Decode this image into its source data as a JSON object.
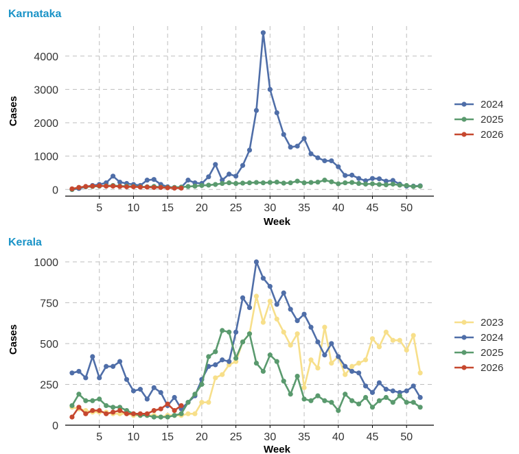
{
  "colors": {
    "title": "#1a93c7",
    "2023": "#f7df8a",
    "2024": "#4f6ea8",
    "2025": "#5a9a6e",
    "2026": "#c6482f"
  },
  "chart_data": [
    {
      "type": "line",
      "title": "Karnataka",
      "xlabel": "Week",
      "ylabel": "Cases",
      "xlim": [
        0,
        54
      ],
      "ylim": [
        -200,
        4900
      ],
      "xticks": [
        5,
        10,
        15,
        20,
        25,
        30,
        35,
        40,
        45,
        50
      ],
      "yticks": [
        0,
        1000,
        2000,
        3000,
        4000
      ],
      "grid": true,
      "legend": "right",
      "series": [
        {
          "name": "2024",
          "x": [
            1,
            2,
            3,
            4,
            5,
            6,
            7,
            8,
            9,
            10,
            11,
            12,
            13,
            14,
            15,
            16,
            17,
            18,
            19,
            20,
            21,
            22,
            23,
            24,
            25,
            26,
            27,
            28,
            29,
            30,
            31,
            32,
            33,
            34,
            35,
            36,
            37,
            38,
            39,
            40,
            41,
            42,
            43,
            44,
            45,
            46,
            47,
            48,
            49,
            50,
            51,
            52
          ],
          "values": [
            0,
            30,
            80,
            120,
            150,
            200,
            400,
            220,
            180,
            150,
            120,
            280,
            300,
            150,
            80,
            60,
            70,
            280,
            200,
            180,
            380,
            750,
            280,
            460,
            400,
            720,
            1180,
            2370,
            4700,
            3000,
            2300,
            1650,
            1270,
            1300,
            1530,
            1070,
            950,
            860,
            860,
            680,
            420,
            430,
            330,
            260,
            330,
            320,
            250,
            270,
            160,
            100,
            100,
            110
          ]
        },
        {
          "name": "2025",
          "x": [
            1,
            2,
            3,
            4,
            5,
            6,
            7,
            8,
            9,
            10,
            11,
            12,
            13,
            14,
            15,
            16,
            17,
            18,
            19,
            20,
            21,
            22,
            23,
            24,
            25,
            26,
            27,
            28,
            29,
            30,
            31,
            32,
            33,
            34,
            35,
            36,
            37,
            38,
            39,
            40,
            41,
            42,
            43,
            44,
            45,
            46,
            47,
            48,
            49,
            50,
            51,
            52
          ],
          "values": [
            0,
            60,
            80,
            90,
            100,
            110,
            120,
            100,
            100,
            90,
            80,
            80,
            90,
            70,
            60,
            60,
            70,
            90,
            100,
            120,
            130,
            150,
            180,
            200,
            180,
            190,
            200,
            210,
            200,
            210,
            220,
            190,
            200,
            250,
            200,
            210,
            220,
            280,
            230,
            170,
            200,
            210,
            180,
            160,
            170,
            150,
            140,
            160,
            130,
            120,
            90,
            100
          ]
        },
        {
          "name": "2026",
          "x": [
            1,
            2,
            3,
            4,
            5,
            6,
            7,
            8,
            9,
            10,
            11,
            12,
            13,
            14,
            15,
            16,
            17
          ],
          "values": [
            20,
            60,
            90,
            100,
            110,
            100,
            100,
            90,
            80,
            80,
            70,
            70,
            60,
            60,
            50,
            40,
            40
          ]
        }
      ]
    },
    {
      "type": "line",
      "title": "Kerala",
      "xlabel": "Week",
      "ylabel": "Cases",
      "xlim": [
        0,
        54
      ],
      "ylim": [
        0,
        1050
      ],
      "xticks": [
        5,
        10,
        15,
        20,
        25,
        30,
        35,
        40,
        45,
        50
      ],
      "yticks": [
        0,
        250,
        500,
        750,
        1000
      ],
      "grid": true,
      "legend": "right",
      "series": [
        {
          "name": "2023",
          "x": [
            1,
            2,
            3,
            4,
            5,
            6,
            7,
            8,
            9,
            10,
            11,
            12,
            13,
            14,
            15,
            16,
            17,
            18,
            19,
            20,
            21,
            22,
            23,
            24,
            25,
            26,
            27,
            28,
            29,
            30,
            31,
            32,
            33,
            34,
            35,
            36,
            37,
            38,
            39,
            40,
            41,
            42,
            43,
            44,
            45,
            46,
            47,
            48,
            49,
            50,
            51,
            52
          ],
          "values": [
            110,
            100,
            90,
            80,
            80,
            80,
            70,
            70,
            70,
            60,
            60,
            60,
            60,
            50,
            60,
            60,
            60,
            70,
            70,
            140,
            140,
            290,
            310,
            370,
            390,
            510,
            560,
            790,
            630,
            760,
            650,
            570,
            490,
            560,
            230,
            400,
            350,
            600,
            380,
            420,
            310,
            360,
            380,
            400,
            530,
            480,
            570,
            520,
            520,
            460,
            550,
            320
          ]
        },
        {
          "name": "2024",
          "x": [
            1,
            2,
            3,
            4,
            5,
            6,
            7,
            8,
            9,
            10,
            11,
            12,
            13,
            14,
            15,
            16,
            17,
            18,
            19,
            20,
            21,
            22,
            23,
            24,
            25,
            26,
            27,
            28,
            29,
            30,
            31,
            32,
            33,
            34,
            35,
            36,
            37,
            38,
            39,
            40,
            41,
            42,
            43,
            44,
            45,
            46,
            47,
            48,
            49,
            50,
            51,
            52
          ],
          "values": [
            320,
            330,
            290,
            420,
            290,
            360,
            360,
            390,
            280,
            210,
            220,
            160,
            230,
            200,
            120,
            170,
            100,
            140,
            180,
            280,
            360,
            370,
            400,
            390,
            570,
            780,
            720,
            1000,
            900,
            850,
            740,
            810,
            710,
            640,
            680,
            600,
            510,
            430,
            500,
            420,
            360,
            330,
            320,
            240,
            200,
            260,
            220,
            210,
            200,
            210,
            240,
            170
          ]
        },
        {
          "name": "2025",
          "x": [
            1,
            2,
            3,
            4,
            5,
            6,
            7,
            8,
            9,
            10,
            11,
            12,
            13,
            14,
            15,
            16,
            17,
            18,
            19,
            20,
            21,
            22,
            23,
            24,
            25,
            26,
            27,
            28,
            29,
            30,
            31,
            32,
            33,
            34,
            35,
            36,
            37,
            38,
            39,
            40,
            41,
            42,
            43,
            44,
            45,
            46,
            47,
            48,
            49,
            50,
            51,
            52
          ],
          "values": [
            120,
            190,
            150,
            150,
            160,
            120,
            110,
            110,
            90,
            70,
            60,
            60,
            50,
            50,
            50,
            60,
            70,
            140,
            190,
            250,
            420,
            450,
            580,
            570,
            410,
            510,
            560,
            380,
            330,
            430,
            390,
            270,
            190,
            300,
            160,
            150,
            180,
            150,
            140,
            90,
            190,
            150,
            130,
            170,
            110,
            150,
            170,
            140,
            180,
            140,
            140,
            110
          ]
        },
        {
          "name": "2026",
          "x": [
            1,
            2,
            3,
            4,
            5,
            6,
            7,
            8,
            9,
            10,
            11,
            12,
            13,
            14,
            15,
            16,
            17
          ],
          "values": [
            50,
            110,
            70,
            90,
            90,
            70,
            80,
            90,
            70,
            70,
            70,
            70,
            90,
            100,
            130,
            90,
            120
          ]
        }
      ]
    }
  ]
}
